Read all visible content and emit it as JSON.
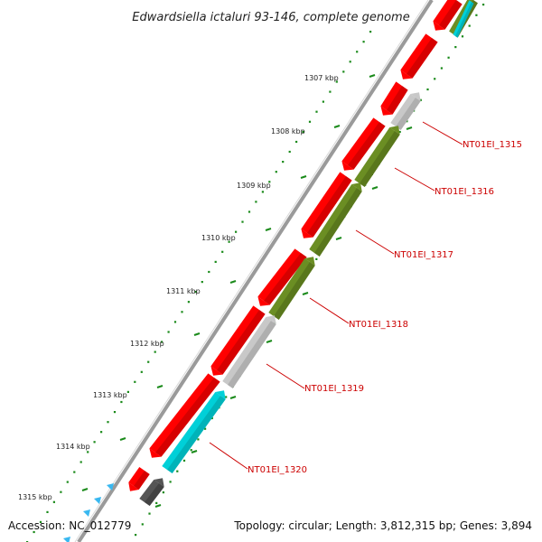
{
  "title": "Edwardsiella ictaluri 93-146, complete genome",
  "footer": {
    "accession": "Accession: NC_012779",
    "summary": "Topology: circular; Length: 3,812,315 bp; Genes: 3,894"
  },
  "ticks": [
    "1307 kbp",
    "1308 kbp",
    "1309 kbp",
    "1310 kbp",
    "1311 kbp",
    "1312 kbp",
    "1313 kbp",
    "1314 kbp",
    "1315 kbp"
  ],
  "gene_labels": [
    "NT01EI_1315",
    "NT01EI_1316",
    "NT01EI_1317",
    "NT01EI_1318",
    "NT01EI_1319",
    "NT01EI_1320"
  ],
  "colors": {
    "forward": "#ff0000",
    "forward_shade": "#b40000",
    "reverse_gray": "#c8c8c8",
    "reverse_olive": "#6b8e23",
    "reverse_cyan": "#00d0d8",
    "reverse_dark": "#555555",
    "tick_dots": "#1a8a1a",
    "backbone": "#9a9a9a",
    "label": "#cc0000"
  }
}
